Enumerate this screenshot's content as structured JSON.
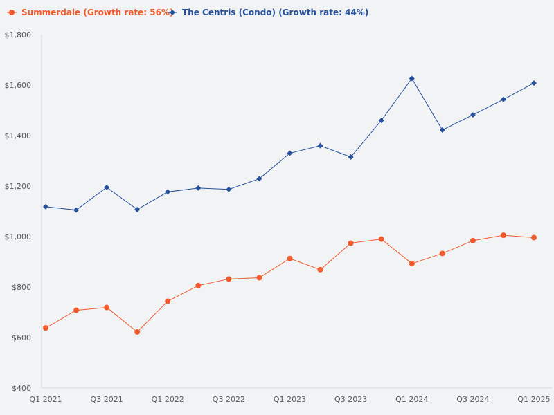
{
  "chart_data": {
    "type": "line",
    "title": "",
    "xlabel": "",
    "ylabel": "",
    "ylim": [
      400,
      1800
    ],
    "yticks": [
      400,
      600,
      800,
      1000,
      1200,
      1400,
      1600,
      1800
    ],
    "ytick_labels": [
      "$400",
      "$600",
      "$800",
      "$1,000",
      "$1,200",
      "$1,400",
      "$1,600",
      "$1,800"
    ],
    "categories": [
      "Q1 2021",
      "Q2 2021",
      "Q3 2021",
      "Q4 2021",
      "Q1 2022",
      "Q2 2022",
      "Q3 2022",
      "Q4 2022",
      "Q1 2023",
      "Q2 2023",
      "Q3 2023",
      "Q4 2023",
      "Q1 2024",
      "Q2 2024",
      "Q3 2024",
      "Q4 2024",
      "Q1 2025"
    ],
    "xtick_labels": [
      "Q1 2021",
      "",
      "Q3 2021",
      "",
      "Q1 2022",
      "",
      "Q3 2022",
      "",
      "Q1 2023",
      "",
      "Q3 2023",
      "",
      "Q1 2024",
      "",
      "Q3 2024",
      "",
      "Q1 2025"
    ],
    "legend_position": "top-left",
    "series": [
      {
        "name": "Summerdale (Growth rate: 56%)",
        "color": "#f15a2b",
        "marker": "circle",
        "values": [
          638,
          708,
          719,
          622,
          744,
          806,
          832,
          837,
          913,
          869,
          974,
          990,
          893,
          933,
          984,
          1005,
          996
        ]
      },
      {
        "name": "The Centris (Condo) (Growth rate: 44%)",
        "color": "#25509b",
        "marker": "diamond",
        "values": [
          1118,
          1105,
          1195,
          1107,
          1177,
          1192,
          1187,
          1229,
          1330,
          1360,
          1315,
          1460,
          1626,
          1422,
          1482,
          1543,
          1608
        ]
      }
    ]
  }
}
